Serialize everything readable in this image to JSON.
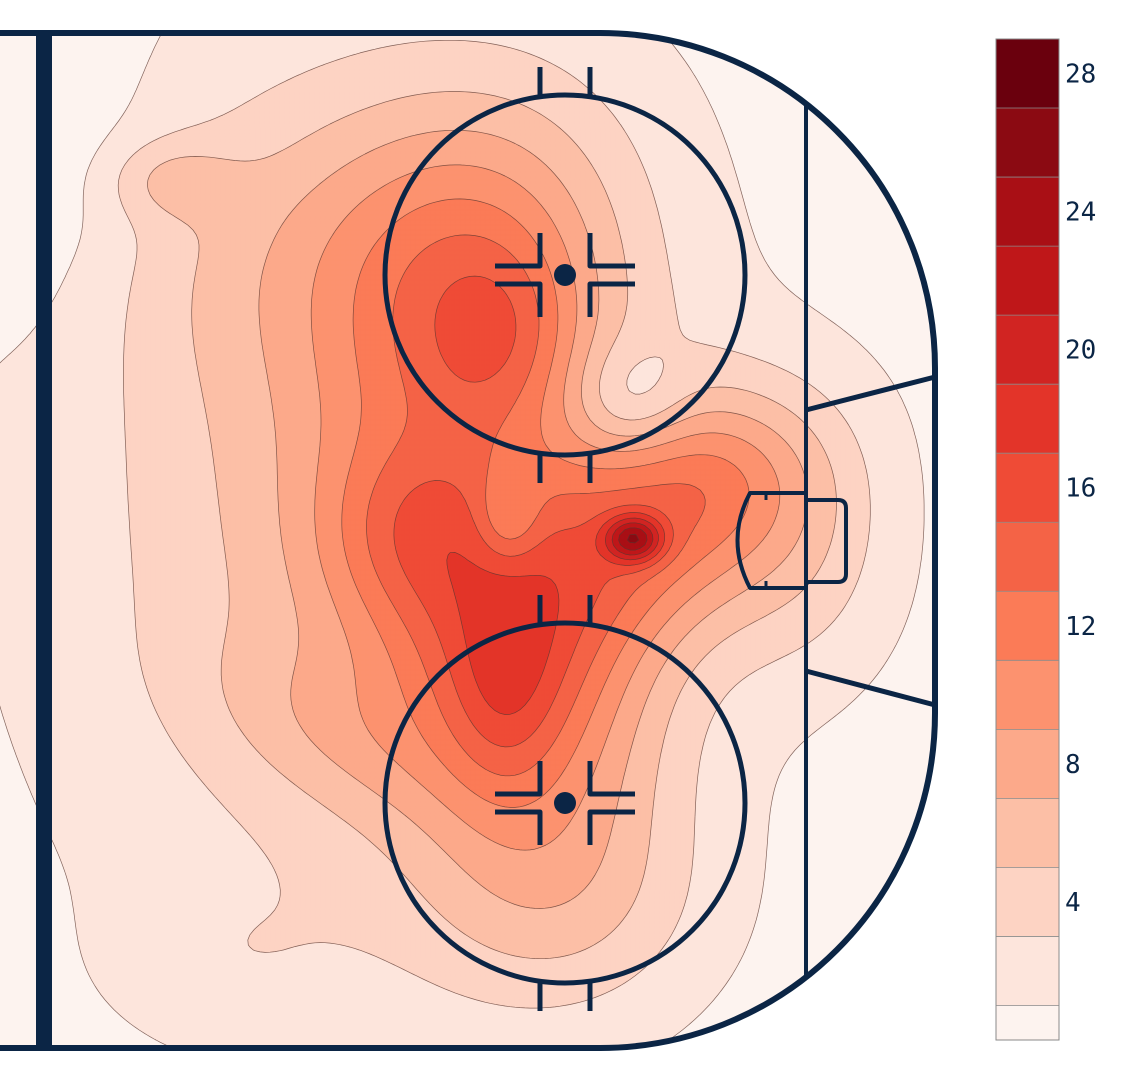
{
  "chart_data": {
    "type": "heatmap",
    "title": "",
    "xlabel": "",
    "ylabel": "",
    "colorbar": {
      "range": [
        0,
        29
      ],
      "levels": [
        0,
        1,
        3,
        5,
        7,
        9,
        11,
        13,
        15,
        17,
        19,
        21,
        23,
        25,
        27,
        29
      ],
      "tick_values": [
        4,
        8,
        12,
        16,
        20,
        24,
        28
      ],
      "tick_labels": [
        "4",
        "8",
        "12",
        "16",
        "20",
        "24",
        "28"
      ],
      "colors": [
        "#fdf3ef",
        "#fde5dc",
        "#fdd3c3",
        "#fcbfa6",
        "#fca98a",
        "#fc926f",
        "#fb7b57",
        "#f46346",
        "#ef4b36",
        "#e33429",
        "#d12422",
        "#bf1719",
        "#a90f15",
        "#8b0a12",
        "#6a000d"
      ]
    },
    "peaks": [
      {
        "location": "slot in front of crease",
        "value": 28
      },
      {
        "location": "upper faceoff circle",
        "value": 16
      },
      {
        "location": "lower faceoff circle",
        "value": 18
      },
      {
        "location": "high slot",
        "value": 16
      },
      {
        "location": "upper point",
        "value": 7
      }
    ],
    "rink_line_color": "#0b2545"
  }
}
